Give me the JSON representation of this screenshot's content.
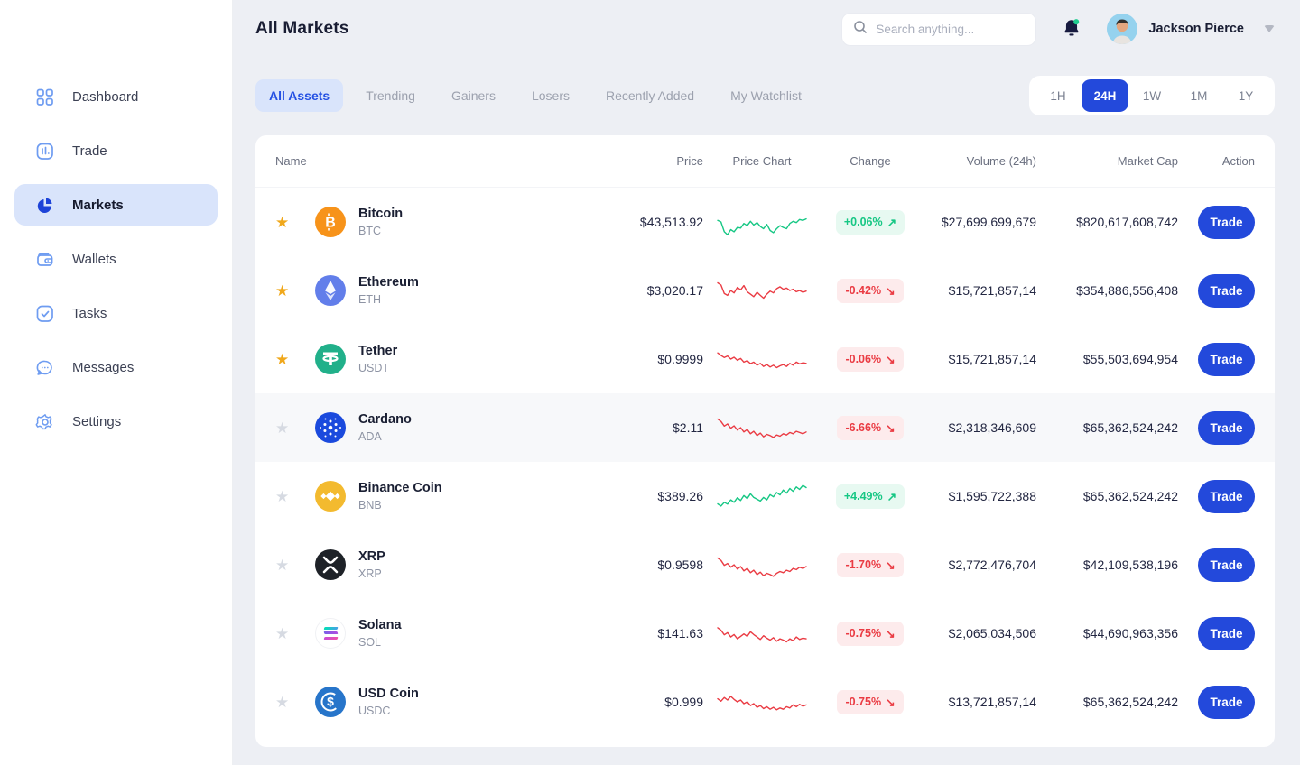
{
  "colors": {
    "accent": "#2349DB",
    "green": "#16C784",
    "red": "#EA3B43",
    "gold": "#F0A81C",
    "active_bg": "#D9E4FB"
  },
  "sidebar": {
    "items": [
      {
        "label": "Dashboard",
        "icon": "dashboard-grid-icon",
        "active": false
      },
      {
        "label": "Trade",
        "icon": "trade-chart-icon",
        "active": false
      },
      {
        "label": "Markets",
        "icon": "pie-chart-icon",
        "active": true
      },
      {
        "label": "Wallets",
        "icon": "wallet-icon",
        "active": false
      },
      {
        "label": "Tasks",
        "icon": "tasks-check-icon",
        "active": false
      },
      {
        "label": "Messages",
        "icon": "chat-bubble-icon",
        "active": false
      },
      {
        "label": "Settings",
        "icon": "gear-icon",
        "active": false
      }
    ]
  },
  "header": {
    "title": "All Markets",
    "search_placeholder": "Search anything...",
    "user_name": "Jackson Pierce",
    "notification_unread": true
  },
  "tabs": [
    {
      "label": "All Assets",
      "active": true
    },
    {
      "label": "Trending",
      "active": false
    },
    {
      "label": "Gainers",
      "active": false
    },
    {
      "label": "Losers",
      "active": false
    },
    {
      "label": "Recently Added",
      "active": false
    },
    {
      "label": "My Watchlist",
      "active": false
    }
  ],
  "time_filters": [
    {
      "label": "1H",
      "active": false
    },
    {
      "label": "24H",
      "active": true
    },
    {
      "label": "1W",
      "active": false
    },
    {
      "label": "1M",
      "active": false
    },
    {
      "label": "1Y",
      "active": false
    }
  ],
  "table": {
    "columns": [
      "Name",
      "Price",
      "Price Chart",
      "Change",
      "Volume (24h)",
      "Market Cap",
      "Action"
    ],
    "trade_label": "Trade",
    "rows": [
      {
        "name": "Bitcoin",
        "symbol": "BTC",
        "icon": "btc",
        "price": "$43,513.92",
        "change": "+0.06%",
        "trend": "up",
        "volume": "$27,699,699,679",
        "market_cap": "$820,617,608,742",
        "starred": true,
        "highlighted": false,
        "spark": [
          55,
          50,
          18,
          8,
          25,
          18,
          32,
          30,
          45,
          38,
          52,
          40,
          48,
          35,
          28,
          42,
          22,
          15,
          28,
          38,
          32,
          28,
          45,
          52,
          48,
          58,
          55,
          60
        ]
      },
      {
        "name": "Ethereum",
        "symbol": "ETH",
        "icon": "eth",
        "price": "$3,020.17",
        "change": "-0.42%",
        "trend": "down",
        "volume": "$15,721,857,14",
        "market_cap": "$354,886,556,408",
        "starred": true,
        "highlighted": false,
        "spark": [
          75,
          68,
          40,
          34,
          50,
          42,
          60,
          52,
          66,
          46,
          38,
          30,
          44,
          34,
          25,
          38,
          48,
          42,
          56,
          62,
          54,
          58,
          50,
          54,
          46,
          50,
          44,
          48
        ]
      },
      {
        "name": "Tether",
        "symbol": "USDT",
        "icon": "usdt",
        "price": "$0.9999",
        "change": "-0.06%",
        "trend": "down",
        "volume": "$15,721,857,14",
        "market_cap": "$55,503,694,954",
        "starred": true,
        "highlighted": false,
        "spark": [
          70,
          62,
          55,
          60,
          50,
          56,
          46,
          52,
          40,
          45,
          35,
          40,
          30,
          36,
          26,
          32,
          24,
          30,
          22,
          28,
          32,
          26,
          36,
          30,
          40,
          34,
          38,
          36
        ]
      },
      {
        "name": "Cardano",
        "symbol": "ADA",
        "icon": "ada",
        "price": "$2.11",
        "change": "-6.66%",
        "trend": "down",
        "volume": "$2,318,346,609",
        "market_cap": "$65,362,524,242",
        "starred": false,
        "highlighted": true,
        "spark": [
          78,
          70,
          55,
          62,
          48,
          56,
          42,
          50,
          36,
          44,
          30,
          38,
          24,
          32,
          20,
          28,
          24,
          18,
          26,
          22,
          30,
          26,
          34,
          30,
          38,
          34,
          30,
          36
        ]
      },
      {
        "name": "Binance Coin",
        "symbol": "BNB",
        "icon": "bnb",
        "price": "$389.26",
        "change": "+4.49%",
        "trend": "up",
        "volume": "$1,595,722,388",
        "market_cap": "$65,362,524,242",
        "starred": false,
        "highlighted": false,
        "spark": [
          25,
          18,
          30,
          24,
          38,
          30,
          45,
          36,
          52,
          42,
          58,
          46,
          40,
          34,
          46,
          38,
          55,
          48,
          62,
          54,
          70,
          60,
          75,
          66,
          80,
          72,
          85,
          78
        ]
      },
      {
        "name": "XRP",
        "symbol": "XRP",
        "icon": "xrp",
        "price": "$0.9598",
        "change": "-1.70%",
        "trend": "down",
        "volume": "$2,772,476,704",
        "market_cap": "$42,109,538,196",
        "starred": false,
        "highlighted": false,
        "spark": [
          72,
          64,
          48,
          54,
          42,
          50,
          36,
          44,
          30,
          38,
          24,
          32,
          18,
          26,
          14,
          22,
          18,
          12,
          22,
          28,
          24,
          32,
          28,
          38,
          34,
          42,
          38,
          44
        ]
      },
      {
        "name": "Solana",
        "symbol": "SOL",
        "icon": "sol",
        "price": "$141.63",
        "change": "-0.75%",
        "trend": "down",
        "volume": "$2,065,034,506",
        "market_cap": "$44,690,963,356",
        "starred": false,
        "highlighted": false,
        "spark": [
          68,
          60,
          45,
          52,
          38,
          46,
          32,
          40,
          48,
          40,
          55,
          46,
          38,
          30,
          42,
          34,
          28,
          36,
          24,
          32,
          28,
          22,
          32,
          26,
          38,
          30,
          34,
          32
        ]
      },
      {
        "name": "USD Coin",
        "symbol": "USDC",
        "icon": "usdc",
        "price": "$0.999",
        "change": "-0.75%",
        "trend": "down",
        "volume": "$13,721,857,14",
        "market_cap": "$65,362,524,242",
        "starred": false,
        "highlighted": false,
        "spark": [
          60,
          52,
          64,
          56,
          68,
          58,
          50,
          56,
          44,
          50,
          38,
          44,
          32,
          38,
          28,
          34,
          26,
          32,
          24,
          30,
          26,
          34,
          30,
          40,
          34,
          42,
          36,
          40
        ]
      }
    ]
  }
}
